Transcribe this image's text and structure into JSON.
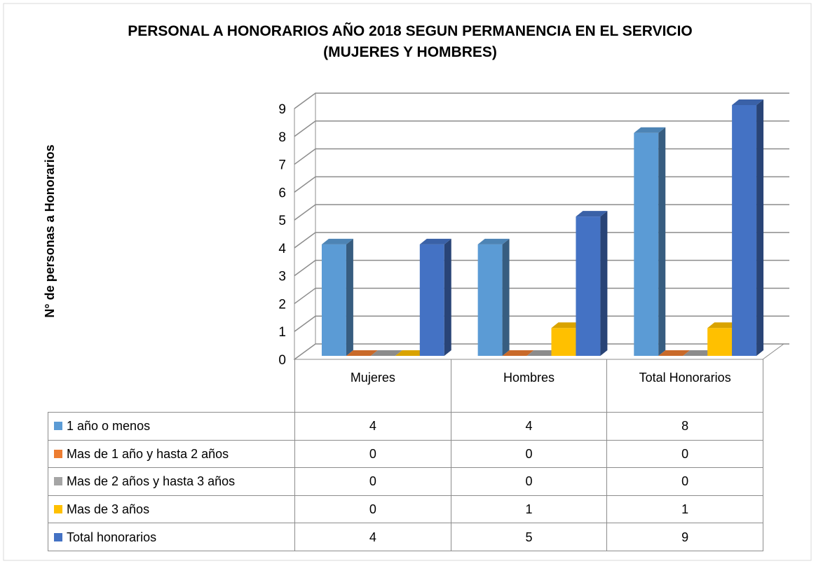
{
  "chart_data": {
    "type": "bar3d",
    "title": "PERSONAL A HONORARIOS AÑO 2018  SEGUN PERMANENCIA EN EL SERVICIO (MUJERES Y HOMBRES)",
    "y_label": "N° de personas a Honorarios",
    "categories": [
      "Mujeres",
      "Hombres",
      "Total Honorarios"
    ],
    "series": [
      {
        "name": "1 año o menos",
        "color": "#5b9bd5",
        "values": [
          4,
          4,
          8
        ]
      },
      {
        "name": "Mas de 1 año y hasta 2 años",
        "color": "#ed7d31",
        "values": [
          0,
          0,
          0
        ]
      },
      {
        "name": "Mas de 2 años y hasta 3 años",
        "color": "#a5a5a5",
        "values": [
          0,
          0,
          0
        ]
      },
      {
        "name": "Mas de 3 años",
        "color": "#ffc000",
        "values": [
          0,
          1,
          1
        ]
      },
      {
        "name": "Total honorarios",
        "color": "#4472c4",
        "values": [
          4,
          5,
          9
        ]
      }
    ],
    "ylim": [
      0,
      9
    ],
    "yticks": [
      0,
      1,
      2,
      3,
      4,
      5,
      6,
      7,
      8,
      9
    ],
    "grid": true,
    "data_table": true
  }
}
